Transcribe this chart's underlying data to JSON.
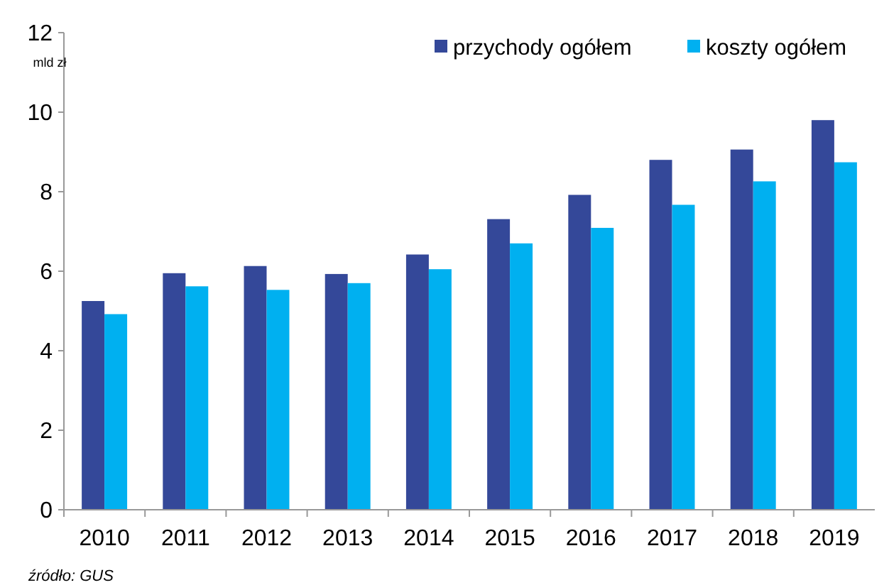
{
  "chart_data": {
    "type": "bar",
    "ylabel": "mld zł",
    "categories": [
      "2010",
      "2011",
      "2012",
      "2013",
      "2014",
      "2015",
      "2016",
      "2017",
      "2018",
      "2019"
    ],
    "series": [
      {
        "name": "przychody ogółem",
        "color": "#344899",
        "values": [
          5.25,
          5.95,
          6.13,
          5.93,
          6.42,
          7.31,
          7.92,
          8.8,
          9.06,
          9.8
        ]
      },
      {
        "name": "koszty ogółem",
        "color": "#00b0f0",
        "values": [
          4.92,
          5.62,
          5.53,
          5.7,
          6.05,
          6.7,
          7.09,
          7.67,
          8.26,
          8.74
        ]
      }
    ],
    "ylim": [
      0,
      12
    ],
    "yticks": [
      0,
      2,
      4,
      6,
      8,
      10,
      12
    ],
    "grid": false,
    "legend": "top right",
    "annotations": [
      "źródło: GUS"
    ]
  }
}
